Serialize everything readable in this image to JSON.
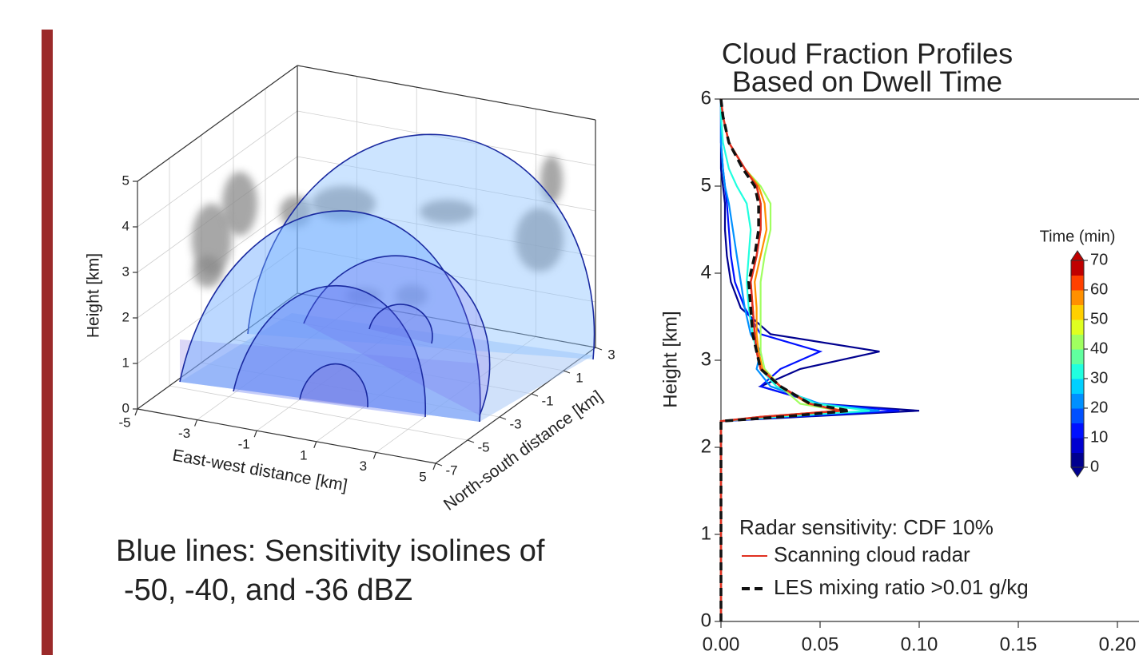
{
  "chart_data": [
    {
      "type": "3d",
      "xlabel": "East-west distance [km]",
      "ylabel": "North-south distance [km]",
      "zlabel": "Height [km]",
      "xlim": [
        -5,
        5
      ],
      "ylim": [
        -7,
        3
      ],
      "zlim": [
        0,
        5
      ],
      "xticks": [
        -5,
        -3,
        -1,
        1,
        3,
        5
      ],
      "yticks": [
        -7,
        -5,
        -3,
        -1,
        1,
        3
      ],
      "zticks": [
        0,
        1,
        2,
        3,
        4,
        5
      ],
      "grid": true,
      "caption": [
        "Blue lines: Sensitivity isolines of",
        "-50, -40, and -36 dBZ"
      ]
    },
    {
      "type": "profile",
      "title": [
        "Cloud Fraction Profiles",
        "Based on Dwell Time"
      ],
      "ylabel": "Height [km]",
      "xlim": [
        0,
        0.2
      ],
      "ylim": [
        0,
        6
      ],
      "xticks": [
        {
          "value": 0,
          "label": "0.00"
        },
        {
          "value": 0.05,
          "label": "0.05"
        },
        {
          "value": 0.1,
          "label": "0.10"
        },
        {
          "value": 0.15,
          "label": "0.15"
        },
        {
          "value": 0.2,
          "label": "0.20"
        }
      ],
      "yticks": [
        0,
        1,
        2,
        3,
        4,
        5,
        6
      ],
      "y": [
        0,
        2.3,
        2.35,
        2.42,
        2.5,
        2.7,
        2.9,
        3.1,
        3.3,
        3.6,
        3.9,
        4.2,
        4.5,
        4.8,
        5.0,
        5.2,
        5.5,
        5.8,
        6.0
      ],
      "legend_title": "Radar sensitivity: CDF 10%",
      "series": [
        {
          "name": "Scanning cloud radar",
          "color": "#e03020",
          "dash": false,
          "values": [
            0,
            0,
            0.02,
            0.06,
            0.045,
            0.03,
            0.02,
            0.018,
            0.017,
            0.016,
            0.015,
            0.018,
            0.02,
            0.02,
            0.018,
            0.012,
            0.004,
            0.001,
            0
          ]
        },
        {
          "name": "LES mixing ratio >0.01 g/kg",
          "color": "#111111",
          "dash": true,
          "values": [
            0,
            0,
            0.03,
            0.065,
            0.045,
            0.03,
            0.02,
            0.018,
            0.016,
            0.015,
            0.014,
            0.017,
            0.019,
            0.019,
            0.017,
            0.011,
            0.004,
            0.001,
            0
          ]
        }
      ],
      "profiles": [
        {
          "time": 0,
          "values": [
            0,
            0,
            0.04,
            0.1,
            0.05,
            0.02,
            0.04,
            0.08,
            0.025,
            0.01,
            0.005,
            0.003,
            0.002,
            0.002,
            0.001,
            0,
            0,
            0,
            0
          ]
        },
        {
          "time": 10,
          "values": [
            0,
            0,
            0.035,
            0.09,
            0.05,
            0.02,
            0.03,
            0.05,
            0.02,
            0.012,
            0.007,
            0.005,
            0.004,
            0.003,
            0.002,
            0.001,
            0,
            0,
            0
          ]
        },
        {
          "time": 20,
          "values": [
            0,
            0,
            0.03,
            0.08,
            0.05,
            0.025,
            0.018,
            0.02,
            0.015,
            0.012,
            0.01,
            0.008,
            0.006,
            0.004,
            0.002,
            0.001,
            0,
            0,
            0
          ]
        },
        {
          "time": 30,
          "values": [
            0,
            0,
            0.028,
            0.075,
            0.048,
            0.028,
            0.02,
            0.018,
            0.016,
            0.014,
            0.013,
            0.014,
            0.015,
            0.013,
            0.008,
            0.004,
            0.001,
            0,
            0
          ]
        },
        {
          "time": 40,
          "values": [
            0,
            0,
            0.02,
            0.06,
            0.04,
            0.03,
            0.022,
            0.02,
            0.02,
            0.02,
            0.02,
            0.022,
            0.025,
            0.025,
            0.02,
            0.012,
            0.004,
            0.001,
            0
          ]
        },
        {
          "time": 55,
          "values": [
            0,
            0,
            0.022,
            0.062,
            0.044,
            0.03,
            0.021,
            0.019,
            0.018,
            0.018,
            0.017,
            0.02,
            0.023,
            0.022,
            0.019,
            0.012,
            0.004,
            0.001,
            0
          ]
        },
        {
          "time": 70,
          "values": [
            0,
            0,
            0.02,
            0.06,
            0.045,
            0.03,
            0.02,
            0.018,
            0.017,
            0.016,
            0.015,
            0.018,
            0.02,
            0.02,
            0.018,
            0.012,
            0.004,
            0.001,
            0
          ]
        }
      ],
      "colorbar": {
        "label": "Time (min)",
        "lim": [
          0,
          70
        ],
        "ticks": [
          0,
          10,
          20,
          30,
          40,
          50,
          60,
          70
        ],
        "colors": [
          "#00008f",
          "#0000d0",
          "#0010ff",
          "#0050ff",
          "#0090ff",
          "#00d0ff",
          "#20ffdf",
          "#60ff9f",
          "#a0ff60",
          "#dfff20",
          "#ffd000",
          "#ff9000",
          "#ff4000",
          "#c00000"
        ]
      }
    }
  ]
}
